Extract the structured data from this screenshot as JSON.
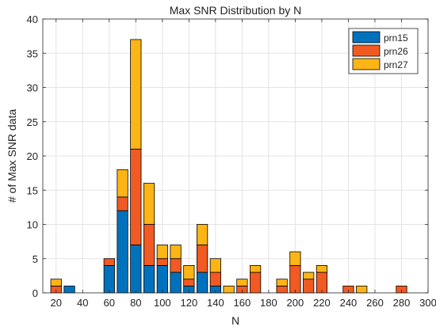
{
  "chart_data": {
    "type": "bar",
    "stacked": true,
    "title": "Max SNR Distribution by N",
    "xlabel": "N",
    "ylabel": "# of Max SNR data",
    "xlim": [
      10,
      300
    ],
    "ylim": [
      0,
      40
    ],
    "xticks": [
      20,
      40,
      60,
      80,
      100,
      120,
      140,
      160,
      180,
      200,
      220,
      240,
      260,
      280,
      300
    ],
    "yticks": [
      0,
      5,
      10,
      15,
      20,
      25,
      30,
      35,
      40
    ],
    "grid": true,
    "legend_position": "top-right",
    "x": [
      20,
      30,
      40,
      50,
      60,
      70,
      80,
      90,
      100,
      110,
      120,
      130,
      140,
      150,
      160,
      170,
      180,
      190,
      200,
      210,
      220,
      230,
      240,
      250,
      260,
      270,
      280,
      290
    ],
    "series": [
      {
        "name": "prn15",
        "color": "#0072BD",
        "values": [
          0,
          1,
          0,
          0,
          4,
          12,
          7,
          4,
          4,
          3,
          1,
          3,
          1,
          0,
          0,
          0,
          0,
          0,
          0,
          0,
          0,
          0,
          0,
          0,
          0,
          0,
          0,
          0
        ]
      },
      {
        "name": "prn26",
        "color": "#F15A22",
        "values": [
          1,
          0,
          0,
          0,
          1,
          2,
          14,
          6,
          1,
          2,
          1,
          4,
          2,
          0,
          1,
          3,
          0,
          1,
          4,
          2,
          3,
          0,
          1,
          0,
          0,
          0,
          1,
          0
        ]
      },
      {
        "name": "prn27",
        "color": "#FDB515",
        "values": [
          1,
          0,
          0,
          0,
          0,
          4,
          16,
          6,
          2,
          2,
          2,
          3,
          2,
          1,
          1,
          1,
          0,
          1,
          2,
          1,
          1,
          0,
          0,
          1,
          0,
          0,
          0,
          0
        ]
      }
    ]
  }
}
